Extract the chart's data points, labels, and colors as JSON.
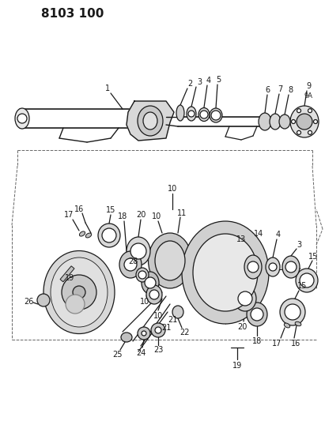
{
  "title": "8103 100",
  "bg": "#ffffff",
  "lc": "#1a1a1a",
  "fig_w": 4.11,
  "fig_h": 5.33,
  "dpi": 100
}
